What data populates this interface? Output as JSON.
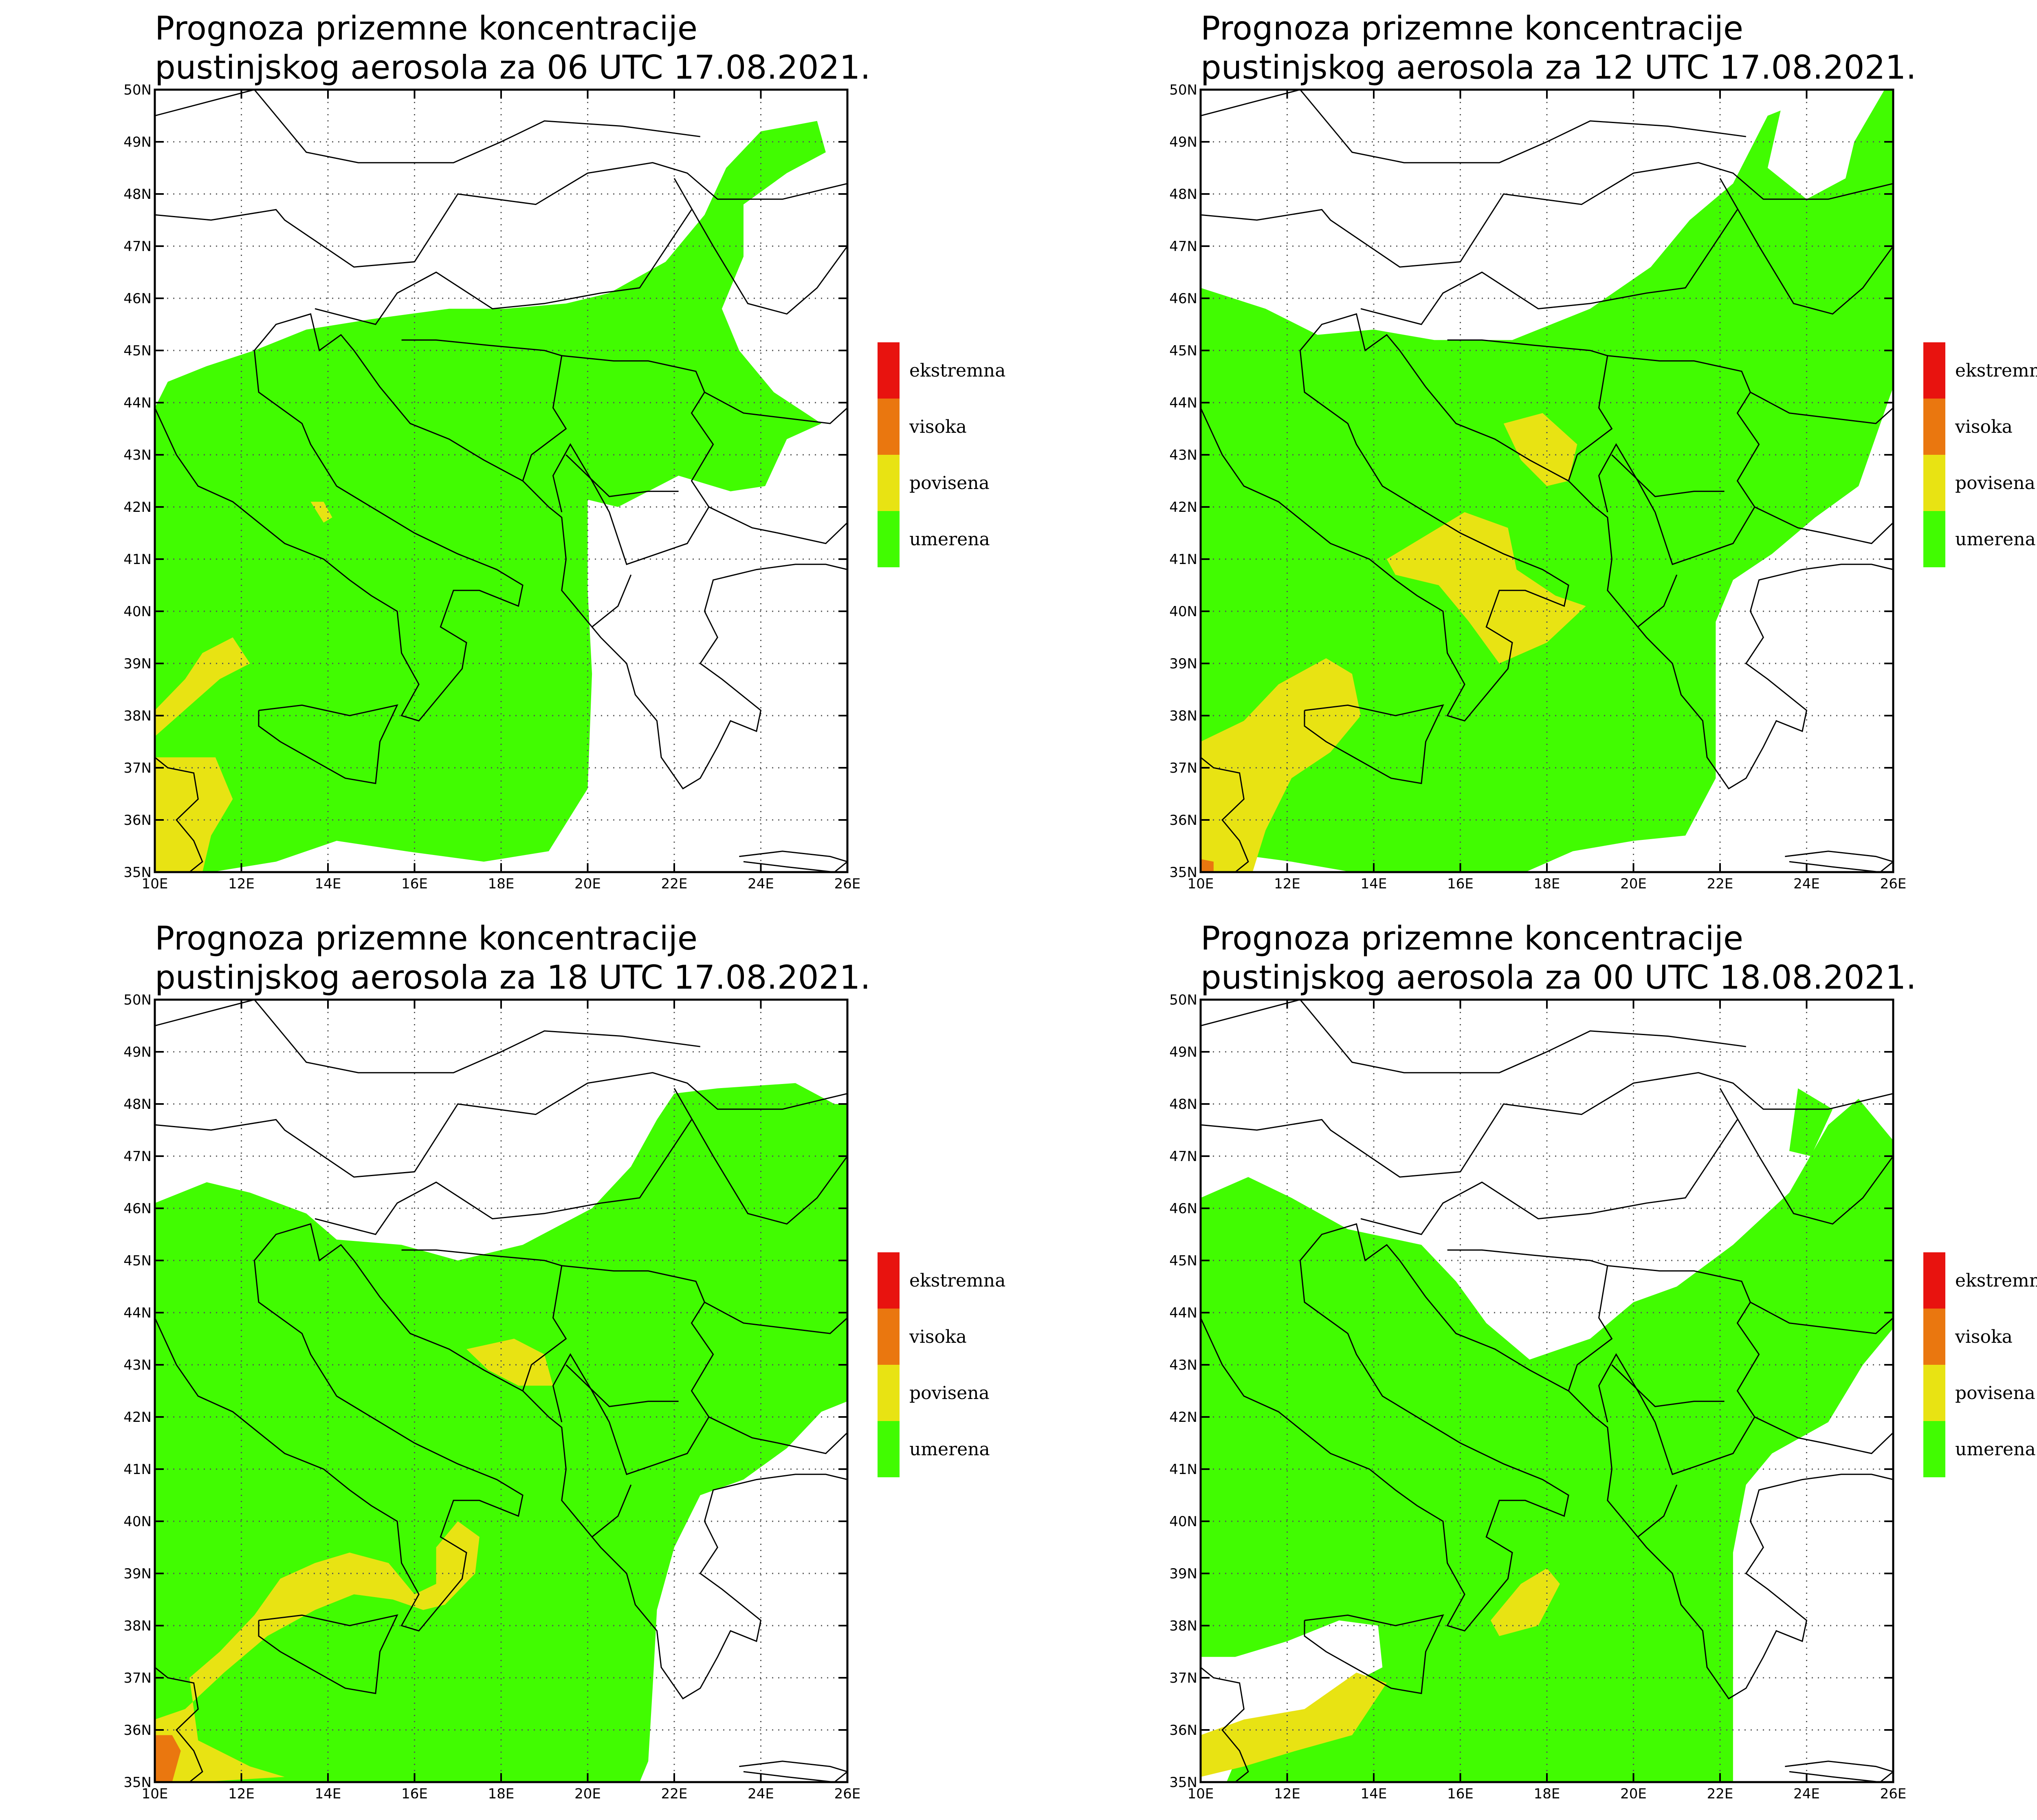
{
  "colors": {
    "ekstremna": "#e8130f",
    "visoka": "#ea770f",
    "povisena": "#e8e313",
    "umerena": "#41fc01",
    "borders": "#000000",
    "gridlines": "#555555"
  },
  "axes": {
    "lon_labels": [
      "10E",
      "12E",
      "14E",
      "16E",
      "18E",
      "20E",
      "22E",
      "24E",
      "26E"
    ],
    "lat_labels": [
      "35N",
      "36N",
      "37N",
      "38N",
      "39N",
      "40N",
      "41N",
      "42N",
      "43N",
      "44N",
      "45N",
      "46N",
      "47N",
      "48N",
      "49N",
      "50N"
    ],
    "lon_range": [
      10,
      26
    ],
    "lat_range": [
      35,
      50
    ]
  },
  "legend": [
    {
      "label": "ekstremna",
      "color": "#e8130f"
    },
    {
      "label": "visoka",
      "color": "#ea770f"
    },
    {
      "label": "povisena",
      "color": "#e8e313"
    },
    {
      "label": "umerena",
      "color": "#41fc01"
    }
  ],
  "panels": [
    {
      "title_line1": "Prognoza prizemne koncentracije",
      "title_line2": "pustinjskog aerosola za 06 UTC 17.08.2021."
    },
    {
      "title_line1": "Prognoza prizemne koncentracije",
      "title_line2": "pustinjskog aerosola za 12 UTC 17.08.2021."
    },
    {
      "title_line1": "Prognoza prizemne koncentracije",
      "title_line2": "pustinjskog aerosola za 18 UTC 17.08.2021."
    },
    {
      "title_line1": "Prognoza prizemne koncentracije",
      "title_line2": "pustinjskog aerosola za 00 UTC 18.08.2021."
    }
  ]
}
